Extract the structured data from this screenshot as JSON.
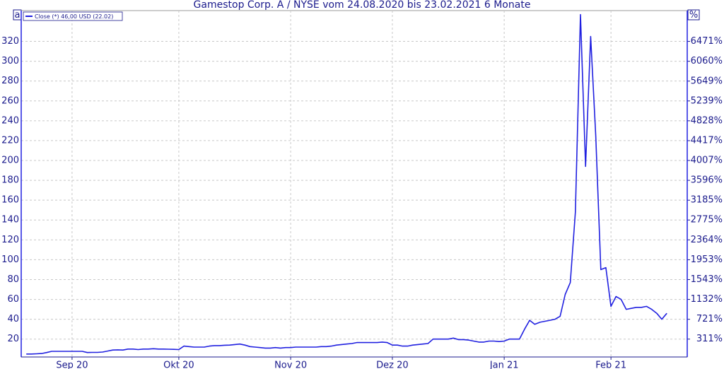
{
  "chart_data": {
    "type": "line",
    "title": "Gamestop Corp. A / NYSE vom 24.08.2020 bis 23.02.2021 6 Monate",
    "left_marker": "a",
    "right_marker": "%",
    "series": [
      {
        "name": "Close (*) 46,00 USD (22.02)",
        "color": "#2020e0",
        "values": [
          5,
          5,
          5.2,
          5.5,
          6.5,
          7.7,
          7.7,
          7.7,
          7.7,
          7.7,
          7.7,
          7.7,
          6.5,
          6.6,
          6.6,
          7,
          8,
          9,
          9.2,
          9,
          10,
          10,
          9.5,
          10,
          10,
          10.3,
          10,
          10,
          9.8,
          9.7,
          9.5,
          13,
          12.5,
          12,
          12,
          12,
          13,
          13.5,
          13.5,
          13.8,
          14,
          14.5,
          15,
          14,
          12.5,
          12,
          11.5,
          11,
          11,
          11.5,
          11,
          11.5,
          11.5,
          12,
          12,
          12,
          12,
          12,
          12.5,
          12.5,
          13,
          14,
          14.5,
          15,
          15.5,
          16.5,
          16.5,
          16.5,
          16.5,
          16.5,
          17,
          16.5,
          14,
          14,
          13,
          13,
          14,
          14.5,
          15,
          15.5,
          20,
          20,
          20,
          20,
          21,
          19.5,
          19.5,
          19,
          18,
          17,
          17,
          18,
          18,
          17.5,
          18,
          20,
          20,
          20,
          30,
          39,
          35,
          37,
          38,
          39,
          40,
          43,
          65,
          77,
          148,
          347,
          194,
          325,
          225,
          90,
          92,
          53,
          63,
          60,
          50,
          51,
          52,
          52,
          53,
          50,
          46,
          40,
          46
        ]
      }
    ],
    "xlim": [
      -1,
      130
    ],
    "xticks": [
      {
        "value": 9,
        "label": "Sep 20"
      },
      {
        "value": 30,
        "label": "Okt 20"
      },
      {
        "value": 52,
        "label": "Nov 20"
      },
      {
        "value": 72,
        "label": "Dez 20"
      },
      {
        "value": 94,
        "label": "Jan 21"
      },
      {
        "value": 115,
        "label": "Feb 21"
      }
    ],
    "ylim": [
      2,
      351
    ],
    "yticks": [
      20,
      40,
      60,
      80,
      100,
      120,
      140,
      160,
      180,
      200,
      220,
      240,
      260,
      280,
      300,
      320
    ],
    "y2lim": [
      -59,
      7108
    ],
    "y2ticks": [
      {
        "value": 311,
        "label": "311%"
      },
      {
        "value": 721,
        "label": "721%"
      },
      {
        "value": 1132,
        "label": "1132%"
      },
      {
        "value": 1543,
        "label": "1543%"
      },
      {
        "value": 1953,
        "label": "1953%"
      },
      {
        "value": 2364,
        "label": "2364%"
      },
      {
        "value": 2775,
        "label": "2775%"
      },
      {
        "value": 3185,
        "label": "3185%"
      },
      {
        "value": 3596,
        "label": "3596%"
      },
      {
        "value": 4007,
        "label": "4007%"
      },
      {
        "value": 4417,
        "label": "4417%"
      },
      {
        "value": 4828,
        "label": "4828%"
      },
      {
        "value": 5239,
        "label": "5239%"
      },
      {
        "value": 5649,
        "label": "5649%"
      },
      {
        "value": 6060,
        "label": "6060%"
      },
      {
        "value": 6471,
        "label": "6471%"
      }
    ],
    "grid": true
  }
}
